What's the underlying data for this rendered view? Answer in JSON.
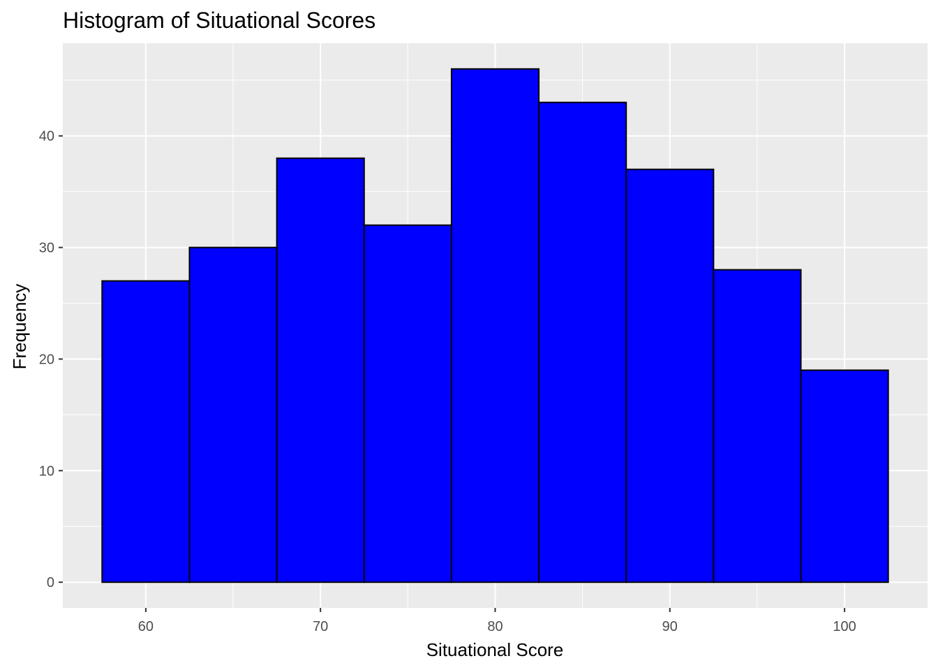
{
  "chart_data": {
    "type": "bar",
    "title": "Histogram of Situational Scores",
    "xlabel": "Situational Score",
    "ylabel": "Frequency",
    "bin_width": 5,
    "bins": [
      {
        "x_start": 57.5,
        "x_end": 62.5,
        "count": 27
      },
      {
        "x_start": 62.5,
        "x_end": 67.5,
        "count": 30
      },
      {
        "x_start": 67.5,
        "x_end": 72.5,
        "count": 38
      },
      {
        "x_start": 72.5,
        "x_end": 77.5,
        "count": 32
      },
      {
        "x_start": 77.5,
        "x_end": 82.5,
        "count": 46
      },
      {
        "x_start": 82.5,
        "x_end": 87.5,
        "count": 43
      },
      {
        "x_start": 87.5,
        "x_end": 92.5,
        "count": 37
      },
      {
        "x_start": 92.5,
        "x_end": 97.5,
        "count": 28
      },
      {
        "x_start": 97.5,
        "x_end": 102.5,
        "count": 19
      }
    ],
    "xlim": [
      55.25,
      104.75
    ],
    "ylim": [
      -2.3,
      48.3
    ],
    "x_ticks": [
      60,
      70,
      80,
      90,
      100
    ],
    "y_ticks": [
      0,
      10,
      20,
      30,
      40
    ],
    "grid": true,
    "colors": {
      "bar_fill": "#0000ff",
      "bar_outline": "#000000",
      "panel_background": "#ebebeb",
      "grid": "#ffffff"
    }
  }
}
